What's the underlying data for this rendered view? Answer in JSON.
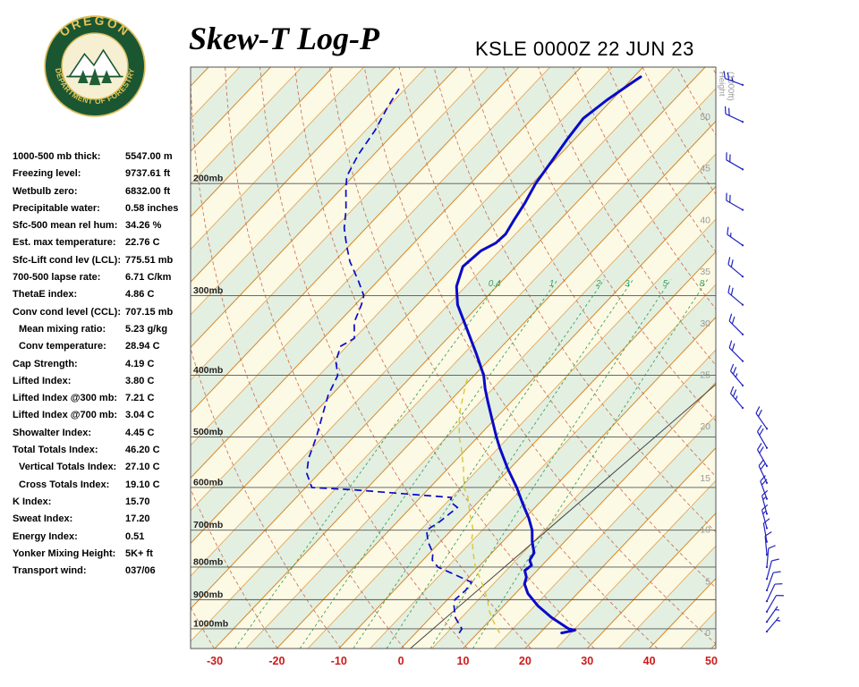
{
  "header": {
    "title": "Skew-T Log-P",
    "station_line": "KSLE 0000Z 22 JUN 23",
    "logo": {
      "top_text": "OREGON",
      "bottom_text": "DEPARTMENT OF FORESTRY"
    }
  },
  "indices": [
    {
      "label": "1000-500 mb thick:",
      "value": "5547.00 m",
      "indent": false
    },
    {
      "label": "Freezing level:",
      "value": "9737.61 ft",
      "indent": false
    },
    {
      "label": "Wetbulb zero:",
      "value": "6832.00 ft",
      "indent": false
    },
    {
      "label": "Precipitable water:",
      "value": "0.58 inches",
      "indent": false
    },
    {
      "label": "Sfc-500 mean rel hum:",
      "value": "34.26 %",
      "indent": false
    },
    {
      "label": "Est. max temperature:",
      "value": "22.76 C",
      "indent": false
    },
    {
      "label": "Sfc-Lift cond lev (LCL):",
      "value": "775.51 mb",
      "indent": false
    },
    {
      "label": "700-500 lapse rate:",
      "value": "6.71 C/km",
      "indent": false
    },
    {
      "label": "ThetaE index:",
      "value": "4.86 C",
      "indent": false
    },
    {
      "label": "Conv cond level (CCL):",
      "value": "707.15 mb",
      "indent": false
    },
    {
      "label": "Mean mixing ratio:",
      "value": "5.23 g/kg",
      "indent": true
    },
    {
      "label": "Conv temperature:",
      "value": "28.94 C",
      "indent": true
    },
    {
      "label": "Cap Strength:",
      "value": "4.19 C",
      "indent": false
    },
    {
      "label": "Lifted Index:",
      "value": "3.80 C",
      "indent": false
    },
    {
      "label": "Lifted Index @300 mb:",
      "value": "7.21 C",
      "indent": false
    },
    {
      "label": "Lifted Index @700 mb:",
      "value": "3.04 C",
      "indent": false
    },
    {
      "label": "Showalter Index:",
      "value": "4.45 C",
      "indent": false
    },
    {
      "label": "Total Totals Index:",
      "value": "46.20 C",
      "indent": false
    },
    {
      "label": "Vertical Totals Index:",
      "value": "27.10 C",
      "indent": true
    },
    {
      "label": "Cross Totals Index:",
      "value": "19.10 C",
      "indent": true
    },
    {
      "label": "K Index:",
      "value": "15.70",
      "indent": false
    },
    {
      "label": "Sweat Index:",
      "value": "17.20",
      "indent": false
    },
    {
      "label": "Energy Index:",
      "value": "0.51",
      "indent": false
    },
    {
      "label": "Yonker Mixing Height:",
      "value": "5K+ ft",
      "indent": false
    },
    {
      "label": "Transport wind:",
      "value": "037/06",
      "indent": false
    }
  ],
  "chart_data": {
    "type": "skewt-log-p",
    "title": "KSLE 0000Z 22 JUN 23",
    "pressure_levels_mb": [
      200,
      300,
      400,
      500,
      600,
      700,
      800,
      900,
      1000
    ],
    "temp_ticks_c": [
      -30,
      -20,
      -10,
      0,
      10,
      20,
      30,
      40,
      50
    ],
    "temp_unit": "C",
    "pressure_unit": "mb",
    "height_ticks_kft": [
      0,
      5,
      10,
      15,
      20,
      25,
      30,
      35,
      40,
      45,
      50
    ],
    "height_axis_label_lines": [
      "Height",
      "(1000ft)"
    ],
    "isotherm_step_c": 5,
    "dry_adiabats_theta_c": [
      -35,
      -25,
      -15,
      -5,
      5,
      15,
      25,
      35,
      45,
      55,
      65,
      75,
      85,
      95,
      105,
      115,
      125,
      135,
      145
    ],
    "mixing_ratio_gkg": [
      0.4,
      1,
      2,
      3,
      5,
      8
    ],
    "temperature_profile": [
      [
        1015,
        23.5
      ],
      [
        1005,
        25.2
      ],
      [
        1000,
        24.0
      ],
      [
        960,
        19.5
      ],
      [
        920,
        15.5
      ],
      [
        880,
        12.0
      ],
      [
        850,
        10.0
      ],
      [
        830,
        9.3
      ],
      [
        810,
        8.0
      ],
      [
        795,
        8.3
      ],
      [
        780,
        7.2
      ],
      [
        760,
        6.8
      ],
      [
        730,
        4.8
      ],
      [
        700,
        3.0
      ],
      [
        670,
        0.6
      ],
      [
        640,
        -2.2
      ],
      [
        600,
        -6.0
      ],
      [
        560,
        -10.4
      ],
      [
        520,
        -14.8
      ],
      [
        500,
        -17.0
      ],
      [
        470,
        -20.3
      ],
      [
        440,
        -23.8
      ],
      [
        420,
        -26.2
      ],
      [
        400,
        -28.5
      ],
      [
        370,
        -33.0
      ],
      [
        340,
        -38.0
      ],
      [
        310,
        -43.5
      ],
      [
        290,
        -46.5
      ],
      [
        270,
        -48.5
      ],
      [
        255,
        -48.0
      ],
      [
        248,
        -46.8
      ],
      [
        240,
        -46.6
      ],
      [
        228,
        -47.4
      ],
      [
        215,
        -48.2
      ],
      [
        200,
        -49.5
      ],
      [
        185,
        -50.3
      ],
      [
        170,
        -51.2
      ],
      [
        158,
        -51.8
      ],
      [
        148,
        -50.8
      ],
      [
        140,
        -49.6
      ],
      [
        136,
        -48.9
      ]
    ],
    "dewpoint_profile": [
      [
        1015,
        7.0
      ],
      [
        1000,
        6.8
      ],
      [
        960,
        4.0
      ],
      [
        920,
        2.0
      ],
      [
        900,
        1.2
      ],
      [
        870,
        1.5
      ],
      [
        845,
        1.2
      ],
      [
        820,
        -3.0
      ],
      [
        800,
        -6.5
      ],
      [
        780,
        -8.5
      ],
      [
        760,
        -9.5
      ],
      [
        730,
        -12.0
      ],
      [
        700,
        -14.0
      ],
      [
        680,
        -13.2
      ],
      [
        660,
        -12.8
      ],
      [
        645,
        -12.5
      ],
      [
        632,
        -14.5
      ],
      [
        622,
        -15.0
      ],
      [
        615,
        -22.0
      ],
      [
        605,
        -32.0
      ],
      [
        600,
        -39.0
      ],
      [
        570,
        -42.0
      ],
      [
        540,
        -44.0
      ],
      [
        500,
        -46.0
      ],
      [
        460,
        -48.5
      ],
      [
        430,
        -50.5
      ],
      [
        400,
        -52.0
      ],
      [
        380,
        -54.5
      ],
      [
        360,
        -56.0
      ],
      [
        350,
        -55.0
      ],
      [
        330,
        -57.5
      ],
      [
        310,
        -59.0
      ],
      [
        300,
        -60.0
      ],
      [
        285,
        -63.0
      ],
      [
        265,
        -67.5
      ],
      [
        250,
        -70.5
      ],
      [
        235,
        -73.5
      ],
      [
        220,
        -76.0
      ],
      [
        205,
        -79.0
      ],
      [
        195,
        -81.0
      ],
      [
        180,
        -82.5
      ],
      [
        165,
        -83.5
      ],
      [
        152,
        -85.0
      ],
      [
        142,
        -86.0
      ]
    ],
    "wetbulb_profile": [
      [
        1015,
        13.5
      ],
      [
        970,
        10.5
      ],
      [
        930,
        8.0
      ],
      [
        900,
        6.5
      ],
      [
        870,
        4.5
      ],
      [
        840,
        2.5
      ],
      [
        800,
        -0.5
      ],
      [
        760,
        -3.0
      ],
      [
        720,
        -5.5
      ],
      [
        700,
        -6.5
      ],
      [
        660,
        -9.5
      ],
      [
        620,
        -12.5
      ],
      [
        600,
        -14.5
      ],
      [
        560,
        -17.5
      ],
      [
        520,
        -21.0
      ],
      [
        500,
        -23.0
      ],
      [
        460,
        -26.5
      ],
      [
        420,
        -29.5
      ],
      [
        400,
        -31.0
      ]
    ],
    "reference_line": [
      [
        1074,
        1.5
      ],
      [
        413,
        10.3
      ]
    ],
    "wind_barbs": [
      {
        "p": 1010,
        "dir": 40,
        "spd": 6
      },
      {
        "p": 975,
        "dir": 35,
        "spd": 5
      },
      {
        "p": 940,
        "dir": 30,
        "spd": 8
      },
      {
        "p": 905,
        "dir": 25,
        "spd": 8
      },
      {
        "p": 870,
        "dir": 20,
        "spd": 10
      },
      {
        "p": 835,
        "dir": 15,
        "spd": 10
      },
      {
        "p": 800,
        "dir": 5,
        "spd": 10
      },
      {
        "p": 765,
        "dir": 355,
        "spd": 12
      },
      {
        "p": 730,
        "dir": 350,
        "spd": 12
      },
      {
        "p": 695,
        "dir": 345,
        "spd": 15
      },
      {
        "p": 660,
        "dir": 345,
        "spd": 15
      },
      {
        "p": 625,
        "dir": 340,
        "spd": 18
      },
      {
        "p": 590,
        "dir": 335,
        "spd": 20
      },
      {
        "p": 555,
        "dir": 330,
        "spd": 20
      },
      {
        "p": 520,
        "dir": 330,
        "spd": 22
      },
      {
        "p": 485,
        "dir": 325,
        "spd": 22
      },
      {
        "p": 450,
        "dir": 320,
        "spd": 25
      },
      {
        "p": 415,
        "dir": 320,
        "spd": 25
      },
      {
        "p": 380,
        "dir": 315,
        "spd": 22
      },
      {
        "p": 345,
        "dir": 315,
        "spd": 20
      },
      {
        "p": 310,
        "dir": 310,
        "spd": 20
      },
      {
        "p": 280,
        "dir": 310,
        "spd": 18
      },
      {
        "p": 250,
        "dir": 305,
        "spd": 15
      },
      {
        "p": 220,
        "dir": 300,
        "spd": 18
      },
      {
        "p": 190,
        "dir": 300,
        "spd": 20
      },
      {
        "p": 160,
        "dir": 295,
        "spd": 22
      },
      {
        "p": 140,
        "dir": 290,
        "spd": 25
      }
    ]
  },
  "colors": {
    "band_cream": "#fcf9e4",
    "band_green": "#e3efe1",
    "isotherm_major": "#d4882a",
    "isotherm_minor": "#e2a04a",
    "dry_adiabat": "#c96a52",
    "mixing_ratio": "#3aa35c",
    "pressure_line": "#555555",
    "profile_blue": "#0a0ac8",
    "wetbulb": "#d9c832",
    "temp_axis": "#cc1a1a",
    "height_gray": "#9a9a9a",
    "wind_barb": "#2323c0",
    "reference_line": "#444444"
  }
}
